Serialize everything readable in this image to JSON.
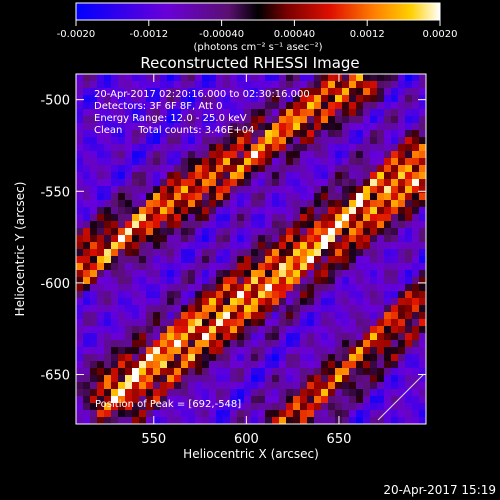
{
  "chart_data": {
    "type": "heatmap",
    "title": "Reconstructed RHESSI Image",
    "xlabel": "Heliocentric X (arcsec)",
    "ylabel": "Heliocentric Y (arcsec)",
    "xlim": [
      508,
      697
    ],
    "ylim": [
      -677,
      -486
    ],
    "x_ticks": [
      550,
      600,
      650
    ],
    "y_ticks": [
      -500,
      -550,
      -600,
      -650
    ],
    "colorbar": {
      "label": "(photons cm⁻² s⁻¹ asec⁻²)",
      "range": [
        -0.002,
        0.002
      ],
      "ticks": [
        "-0.0020",
        "-0.0012",
        "-0.00040",
        "0.00040",
        "0.0012",
        "0.0020"
      ],
      "tick_values": [
        -0.002,
        -0.0012,
        -0.0004,
        0.0004,
        0.0012,
        0.002
      ]
    },
    "annotations": [
      "20-Apr-2017 02:20:16.000 to 02:30:16.000",
      "Detectors: 3F 6F 8F, Att 0",
      "Energy Range: 12.0 - 25.0 keV",
      "Clean     Total counts: 3.46E+04"
    ],
    "peak_label": "Position of Peak = [692,-548]",
    "peak": [
      692,
      -548
    ],
    "ridges": [
      {
        "description": "upper band",
        "start": [
          510,
          -590
        ],
        "end": [
          660,
          -490
        ],
        "peak_value": 0.0016
      },
      {
        "description": "central band (brightest)",
        "start": [
          530,
          -660
        ],
        "end": [
          697,
          -535
        ],
        "peak_value": 0.002
      },
      {
        "description": "lower band",
        "start": [
          620,
          -677
        ],
        "end": [
          697,
          -610
        ],
        "peak_value": 0.0012
      }
    ]
  },
  "footer": {
    "timestamp": "20-Apr-2017 15:19"
  }
}
